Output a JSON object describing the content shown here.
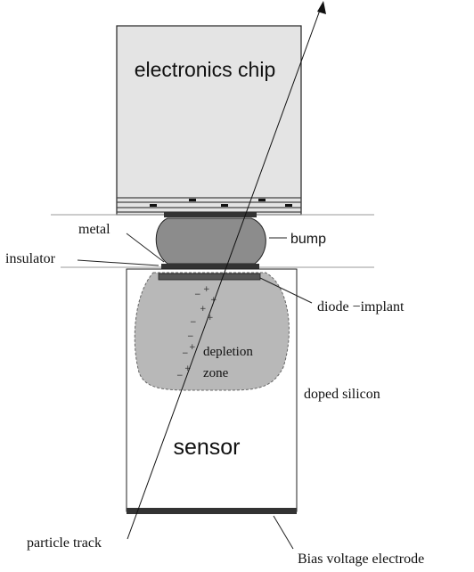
{
  "labels": {
    "chip": "electronics chip",
    "sensor": "sensor",
    "metal": "metal",
    "bump": "bump",
    "insulator": "insulator",
    "diode_implant": "diode −implant",
    "depletion_line1": "depletion",
    "depletion_line2": "zone",
    "doped_silicon": "doped silicon",
    "particle_track": "particle track",
    "bias_electrode": "Bias voltage electrode"
  },
  "charges": {
    "plus": "+",
    "minus": "−"
  },
  "colors": {
    "chip_fill": "#e4e4e4",
    "bump_fill": "#8c8c8c",
    "depletion_fill": "#b8b8b8",
    "electrode": "#333333",
    "outline": "#222222"
  }
}
